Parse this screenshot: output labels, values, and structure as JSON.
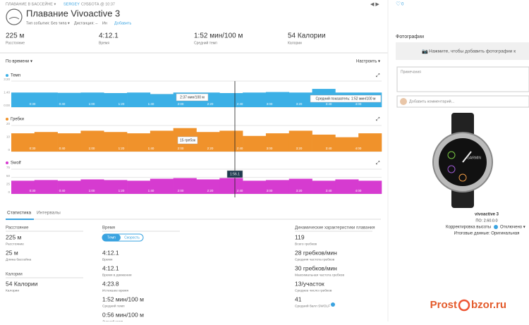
{
  "header": {
    "breadcrumb": "ПЛАВАНИЕ В БАССЕЙНЕ ▾",
    "user": "SERGEY",
    "date": "СУББОТА @ 10:37",
    "title": "Плавание Vivoactive 3",
    "event_type": "Тип события: Без типа ▾",
    "distance": "Дистанция: –",
    "info": "Ин",
    "add": "Добавить",
    "likes": "0"
  },
  "summary": [
    {
      "value": "225 м",
      "label": "Расстояние"
    },
    {
      "value": "4:12.1",
      "label": "Время"
    },
    {
      "value": "1:52 мин/100 м",
      "label": "Средний темп"
    },
    {
      "value": "54 Калории",
      "label": "Калории"
    }
  ],
  "controls": {
    "by_time": "По времени ▾",
    "customize": "Настроить ▾"
  },
  "charts": [
    {
      "name": "Темп",
      "color": "#3cb0e6",
      "ylim": [
        0,
        200
      ],
      "yticks": [
        {
          "value": 0,
          "label": "0:00"
        },
        {
          "value": 100,
          "label": "1:40"
        },
        {
          "value": 200,
          "label": "3:20"
        }
      ],
      "values": [
        112,
        112,
        110,
        112,
        108,
        112,
        100,
        112,
        112,
        108,
        112,
        116,
        112,
        140,
        112,
        112
      ],
      "tooltip": "2:37 мин/100 м",
      "avg": "Средний показатель: 1:52 мин/100 м"
    },
    {
      "name": "Гребки",
      "color": "#f0922b",
      "ylim": [
        0,
        20
      ],
      "yticks": [
        0,
        10,
        20
      ],
      "values": [
        14,
        15,
        14,
        16,
        15,
        14,
        16,
        18,
        15,
        16,
        12,
        14,
        16,
        13,
        11,
        14
      ],
      "tooltip": "15 гребок"
    },
    {
      "name": "Swolf",
      "color": "#d63bd0",
      "ylim": [
        0,
        75
      ],
      "yticks": [
        0,
        25,
        50,
        75
      ],
      "values": [
        40,
        42,
        40,
        44,
        42,
        40,
        46,
        48,
        44,
        48,
        40,
        42,
        46,
        40,
        44,
        40
      ],
      "tooltip": "1:56.1"
    }
  ],
  "xticks": [
    "0:30",
    "0:40",
    "1:00",
    "1:20",
    "1:40",
    "2:00",
    "2:20",
    "2:40",
    "3:00",
    "3:20",
    "3:40",
    "4:00"
  ],
  "tabs": [
    "Статистика",
    "Интервалы"
  ],
  "stats": {
    "distance": {
      "title": "Расстояние",
      "items": [
        {
          "value": "225 м",
          "label": "Расстояние"
        },
        {
          "value": "25 м",
          "label": "Длина бассейна"
        }
      ]
    },
    "calories": {
      "title": "Калории",
      "items": [
        {
          "value": "54 Калории",
          "label": "Калории"
        }
      ]
    },
    "time": {
      "title": "Время",
      "toggle": [
        "Темп",
        "Скорость"
      ],
      "items": [
        {
          "value": "4:12.1",
          "label": "Время"
        },
        {
          "value": "4:12.1",
          "label": "Время в движении"
        },
        {
          "value": "4:23.8",
          "label": "Истекшее время"
        },
        {
          "value": "1:52 мин/100 м",
          "label": "Средний темп"
        },
        {
          "value": "0:56 мин/100 м",
          "label": "Лучший темп"
        }
      ]
    },
    "dynamics": {
      "title": "Динамические характеристики плавания",
      "items": [
        {
          "value": "119",
          "label": "Всего гребков"
        },
        {
          "value": "28 гребков/мин",
          "label": "Средняя частота гребков"
        },
        {
          "value": "30 гребков/мин",
          "label": "Максимальная частота гребков"
        },
        {
          "value": "13/участок",
          "label": "Среднее число гребков"
        },
        {
          "value": "41",
          "label": "Средний балл SWOLF"
        }
      ]
    }
  },
  "sidebar": {
    "photos_title": "Фотографии",
    "photos_add": "Нажмите, чтобы добавить фотографии к",
    "notes": "Примечания",
    "comment": "Добавить комментарий...",
    "watch_brand": "GARMIN",
    "device": "vivoactive 3",
    "firmware": "ПО: 2.60.0.0",
    "altitude": "Корректировка высоты",
    "altitude_value": "Отключено ▾",
    "summary": "Итоговые данные: Оригинальная"
  },
  "watermark": [
    "Prost",
    "bzor.ru"
  ]
}
